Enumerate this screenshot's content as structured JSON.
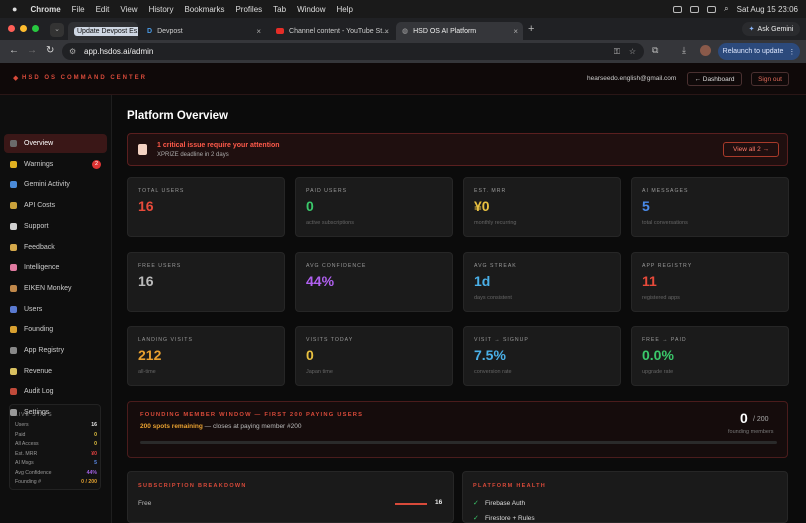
{
  "macbar": {
    "app": "Chrome",
    "menus": [
      "File",
      "Edit",
      "View",
      "History",
      "Bookmarks",
      "Profiles",
      "Tab",
      "Window",
      "Help"
    ],
    "clock": "Sat Aug 15 23:06",
    "ask_gemini": "Ask Gemini"
  },
  "tabs": [
    {
      "label": "Update Devpost Es..."
    },
    {
      "label": "Devpost"
    },
    {
      "label": "Channel content - YouTube St..."
    },
    {
      "label": "HSD OS AI Platform"
    }
  ],
  "browser": {
    "url": "app.hsdos.ai/admin",
    "relaunch": "Relaunch to update"
  },
  "topbar": {
    "brand": "HSD OS COMMAND CENTER",
    "email": "hearseedo.english@gmail.com",
    "dashboard": "← Dashboard",
    "signout": "Sign out"
  },
  "sidebar": {
    "items": [
      {
        "label": "Overview",
        "icon": "overview-icon",
        "color": "#6a6a6a"
      },
      {
        "label": "Warnings",
        "icon": "warning-icon",
        "color": "#e0b020",
        "badge": "2"
      },
      {
        "label": "Gemini Activity",
        "icon": "gemini-icon",
        "color": "#4a8ad8"
      },
      {
        "label": "API Costs",
        "icon": "coins-icon",
        "color": "#c9a13a"
      },
      {
        "label": "Support",
        "icon": "chat-icon",
        "color": "#d0d0d0"
      },
      {
        "label": "Feedback",
        "icon": "feedback-icon",
        "color": "#d4a84a"
      },
      {
        "label": "Intelligence",
        "icon": "brain-icon",
        "color": "#e07aa0"
      },
      {
        "label": "EIKEN Monkey",
        "icon": "monkey-icon",
        "color": "#c0884a"
      },
      {
        "label": "Users",
        "icon": "users-icon",
        "color": "#5a7ad0"
      },
      {
        "label": "Founding",
        "icon": "founding-icon",
        "color": "#d8a030"
      },
      {
        "label": "App Registry",
        "icon": "registry-icon",
        "color": "#888"
      },
      {
        "label": "Revenue",
        "icon": "revenue-icon",
        "color": "#d8c060"
      },
      {
        "label": "Audit Log",
        "icon": "log-icon",
        "color": "#c04a3a"
      },
      {
        "label": "Settings",
        "icon": "gear-icon",
        "color": "#999"
      }
    ],
    "live_title": "LIVE STATS",
    "live": [
      {
        "k": "Users",
        "v": "16",
        "c": "#e8e8e8"
      },
      {
        "k": "Paid",
        "v": "0",
        "c": "#e0c040"
      },
      {
        "k": "All Access",
        "v": "0",
        "c": "#e0c040"
      },
      {
        "k": "Est. MRR",
        "v": "¥0",
        "c": "#e04040"
      },
      {
        "k": "AI Msgs",
        "v": "5",
        "c": "#5a8ae8"
      },
      {
        "k": "Avg Confidence",
        "v": "44%",
        "c": "#a060e0"
      },
      {
        "k": "Founding #",
        "v": "0 / 200",
        "c": "#e0a030"
      }
    ]
  },
  "main": {
    "title": "Platform Overview",
    "alert": {
      "title": "1 critical issue require your attention",
      "sub": "XPRIZE deadline in 2 days",
      "button": "View all 2 →"
    },
    "cards": [
      {
        "label": "TOTAL USERS",
        "value": "16",
        "sub": "",
        "color": "#e84a3a"
      },
      {
        "label": "PAID USERS",
        "value": "0",
        "sub": "active subscriptions",
        "color": "#3ac86a"
      },
      {
        "label": "EST. MRR",
        "value": "¥0",
        "sub": "monthly recurring",
        "color": "#e8c040"
      },
      {
        "label": "AI MESSAGES",
        "value": "5",
        "sub": "total conversations",
        "color": "#4a8ae8"
      },
      {
        "label": "FREE USERS",
        "value": "16",
        "sub": "",
        "color": "#bbbbbb"
      },
      {
        "label": "AVG CONFIDENCE",
        "value": "44%",
        "sub": "",
        "color": "#b060f0"
      },
      {
        "label": "AVG STREAK",
        "value": "1d",
        "sub": "days consistent",
        "color": "#4ab0e8"
      },
      {
        "label": "APP REGISTRY",
        "value": "11",
        "sub": "registered apps",
        "color": "#e84a3a"
      },
      {
        "label": "LANDING VISITS",
        "value": "212",
        "sub": "all-time",
        "color": "#e8a030"
      },
      {
        "label": "VISITS TODAY",
        "value": "0",
        "sub": "Japan time",
        "color": "#e8c040"
      },
      {
        "label": "VISIT → SIGNUP",
        "value": "7.5%",
        "sub": "conversion rate",
        "color": "#4ab0e8"
      },
      {
        "label": "FREE → PAID",
        "value": "0.0%",
        "sub": "upgrade rate",
        "color": "#3ac86a"
      }
    ],
    "founding": {
      "title": "FOUNDING MEMBER WINDOW — FIRST 200 PAYING USERS",
      "remaining": "200 spots remaining",
      "closes": " — closes at paying member #200",
      "count": "0",
      "total": "/ 200",
      "caption": "founding members",
      "progress": 0
    },
    "subscription": {
      "title": "SUBSCRIPTION BREAKDOWN",
      "row_label": "Free",
      "row_value": "16"
    },
    "health": {
      "title": "PLATFORM HEALTH",
      "items": [
        "Firebase Auth",
        "Firestore + Rules"
      ]
    }
  }
}
